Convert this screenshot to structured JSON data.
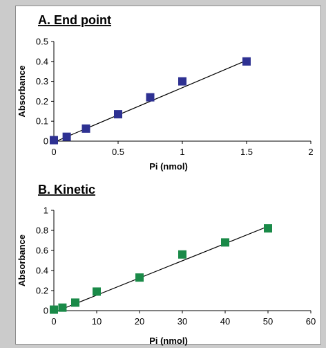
{
  "chart_data": [
    {
      "type": "scatter",
      "title": "A. End point",
      "xlabel": "Pi (nmol)",
      "ylabel": "Absorbance",
      "xlim": [
        0,
        2
      ],
      "ylim": [
        0,
        0.5
      ],
      "xticks": [
        "0",
        "0.5",
        "1",
        "1.5",
        "2"
      ],
      "yticks": [
        "0",
        "0.1",
        "0.2",
        "0.3",
        "0.4",
        "0.5"
      ],
      "marker_color": "#2e3192",
      "series": [
        {
          "x": [
            0,
            0.1,
            0.25,
            0.5,
            0.75,
            1.0,
            1.5
          ],
          "y": [
            0.005,
            0.022,
            0.063,
            0.135,
            0.22,
            0.3,
            0.4
          ]
        }
      ],
      "trendline": {
        "x": [
          0.02,
          1.5
        ],
        "y": [
          0.0,
          0.405
        ]
      },
      "grid": false
    },
    {
      "type": "scatter",
      "title": "B. Kinetic",
      "xlabel": "Pi (nmol)",
      "ylabel": "Absorbance",
      "xlim": [
        0,
        60
      ],
      "ylim": [
        0,
        1
      ],
      "xticks": [
        "0",
        "10",
        "20",
        "30",
        "40",
        "50",
        "60"
      ],
      "yticks": [
        "0",
        "0.2",
        "0.4",
        "0.6",
        "0.8",
        "1"
      ],
      "marker_color": "#1a8a48",
      "series": [
        {
          "x": [
            0,
            2,
            5,
            10,
            20,
            30,
            40,
            50
          ],
          "y": [
            0.01,
            0.03,
            0.08,
            0.19,
            0.33,
            0.56,
            0.68,
            0.82
          ]
        }
      ],
      "trendline": {
        "x": [
          1,
          50
        ],
        "y": [
          0.0,
          0.84
        ]
      },
      "grid": false
    }
  ]
}
